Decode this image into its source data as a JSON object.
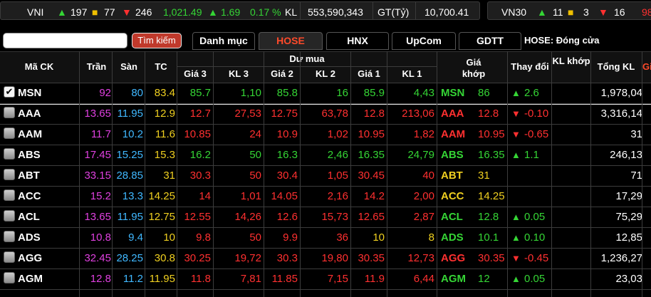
{
  "ticker_bar": {
    "index_name": "VNI",
    "advances": "197",
    "unchanged": "77",
    "declines": "246",
    "index_value": "1,021.49",
    "index_change": "1.69",
    "index_change_pct": "0.17 %",
    "volume_label": "KL",
    "volume_value": "553,590,343",
    "value_label": "GT(Tỷ)",
    "value_value": "10,700.41",
    "index2_name": "VN30",
    "index2_advances": "11",
    "index2_unchanged": "3",
    "index2_declines": "16",
    "index2_value_partial": "98"
  },
  "toolbar": {
    "search_placeholder": "",
    "search_button": "Tìm kiếm",
    "tabs": [
      "Danh mục",
      "HOSE",
      "HNX",
      "UpCom",
      "GDTT"
    ],
    "active_tab": "HOSE",
    "market_status": "HOSE:  Đóng cửa"
  },
  "headers": {
    "symbol": "Mã CK",
    "ceiling": "Trần",
    "floor": "Sàn",
    "ref": "TC",
    "bid_group": "Dư mua",
    "price3": "Giá 3",
    "vol3": "KL 3",
    "price2": "Giá 2",
    "vol2": "KL 2",
    "price1": "Giá 1",
    "vol1": "KL 1",
    "match_price": "Giá khớp",
    "change": "Thay đổi",
    "match_vol": "KL khớp",
    "total_vol": "Tổng KL",
    "extra_partial": "Gi"
  },
  "colors": {
    "ceiling": "#e040e0",
    "floor": "#40b8ff",
    "ref": "#f0d020",
    "up": "#35d535",
    "down": "#ff3030",
    "accent": "#ff4a2a"
  },
  "rows": [
    {
      "checked": true,
      "symbol": "MSN",
      "ceiling": "92",
      "floor": "80",
      "ref": "83.4",
      "p3": "85.7",
      "v3": "1,10",
      "p2": "85.8",
      "v2": "16",
      "p1": "85.9",
      "v1": "4,43",
      "match": "86",
      "change": "2.6",
      "dir": "up",
      "mvol": "",
      "total": "1,978,04"
    },
    {
      "checked": false,
      "symbol": "AAA",
      "ceiling": "13.65",
      "floor": "11.95",
      "ref": "12.9",
      "p3": "12.7",
      "v3": "27,53",
      "p2": "12.75",
      "v2": "63,78",
      "p1": "12.8",
      "v1": "213,06",
      "match": "12.8",
      "change": "-0.10",
      "dir": "down",
      "mvol": "",
      "total": "3,316,14"
    },
    {
      "checked": false,
      "symbol": "AAM",
      "ceiling": "11.7",
      "floor": "10.2",
      "ref": "11.6",
      "p3": "10.85",
      "v3": "24",
      "p2": "10.9",
      "v2": "1,02",
      "p1": "10.95",
      "v1": "1,82",
      "match": "10.95",
      "change": "-0.65",
      "dir": "down",
      "mvol": "",
      "total": "31"
    },
    {
      "checked": false,
      "symbol": "ABS",
      "ceiling": "17.45",
      "floor": "15.25",
      "ref": "15.3",
      "p3": "16.2",
      "v3": "50",
      "p2": "16.3",
      "v2": "2,46",
      "p1": "16.35",
      "v1": "24,79",
      "match": "16.35",
      "change": "1.1",
      "dir": "up",
      "mvol": "",
      "total": "246,13"
    },
    {
      "checked": false,
      "symbol": "ABT",
      "ceiling": "33.15",
      "floor": "28.85",
      "ref": "31",
      "p3": "30.3",
      "v3": "50",
      "p2": "30.4",
      "v2": "1,05",
      "p1": "30.45",
      "v1": "40",
      "match": "31",
      "change": "",
      "dir": "ref",
      "mvol": "",
      "total": "71"
    },
    {
      "checked": false,
      "symbol": "ACC",
      "ceiling": "15.2",
      "floor": "13.3",
      "ref": "14.25",
      "p3": "14",
      "v3": "1,01",
      "p2": "14.05",
      "v2": "2,16",
      "p1": "14.2",
      "v1": "2,00",
      "match": "14.25",
      "change": "",
      "dir": "ref",
      "mvol": "",
      "total": "17,29"
    },
    {
      "checked": false,
      "symbol": "ACL",
      "ceiling": "13.65",
      "floor": "11.95",
      "ref": "12.75",
      "p3": "12.55",
      "v3": "14,26",
      "p2": "12.6",
      "v2": "15,73",
      "p1": "12.65",
      "v1": "2,87",
      "match": "12.8",
      "change": "0.05",
      "dir": "up",
      "mvol": "",
      "total": "75,29"
    },
    {
      "checked": false,
      "symbol": "ADS",
      "ceiling": "10.8",
      "floor": "9.4",
      "ref": "10",
      "p3": "9.8",
      "v3": "50",
      "p2": "9.9",
      "v2": "36",
      "p1": "10",
      "v1": "8",
      "match": "10.1",
      "change": "0.10",
      "dir": "up",
      "mvol": "",
      "total": "12,85"
    },
    {
      "checked": false,
      "symbol": "AGG",
      "ceiling": "32.45",
      "floor": "28.25",
      "ref": "30.8",
      "p3": "30.25",
      "v3": "19,72",
      "p2": "30.3",
      "v2": "19,80",
      "p1": "30.35",
      "v1": "12,73",
      "match": "30.35",
      "change": "-0.45",
      "dir": "down",
      "mvol": "",
      "total": "1,236,27"
    },
    {
      "checked": false,
      "symbol": "AGM",
      "ceiling": "12.8",
      "floor": "11.2",
      "ref": "11.95",
      "p3": "11.8",
      "v3": "7,81",
      "p2": "11.85",
      "v2": "7,15",
      "p1": "11.9",
      "v1": "6,44",
      "match": "12",
      "change": "0.05",
      "dir": "up",
      "mvol": "",
      "total": "23,03"
    }
  ]
}
